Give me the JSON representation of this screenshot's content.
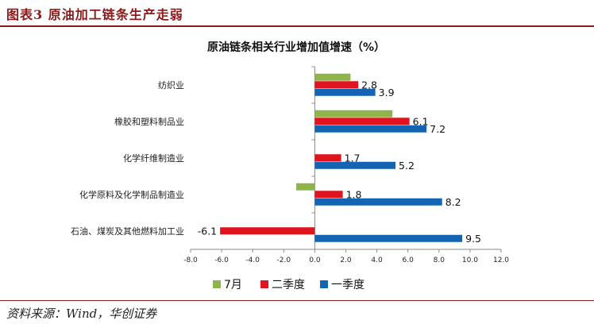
{
  "figure": {
    "title": "图表3   原油加工链条生产走弱",
    "source": "资料来源：Wind，华创证券"
  },
  "chart_data": {
    "type": "bar",
    "orientation": "horizontal",
    "title": "原油链条相关行业增加值增速（%）",
    "categories": [
      "纺织业",
      "橡胶和塑料制品业",
      "化学纤维制造业",
      "化学原料及化学制品制造业",
      "石油、煤炭及其他燃料加工业"
    ],
    "series": [
      {
        "name": "7月",
        "color": "#8db54b",
        "values": [
          2.3,
          5.0,
          null,
          -1.2,
          null
        ],
        "labels": [
          "",
          "",
          "",
          "",
          ""
        ]
      },
      {
        "name": "二季度",
        "color": "#e0141e",
        "values": [
          2.8,
          6.1,
          1.7,
          1.8,
          -6.1
        ],
        "labels": [
          "2.8",
          "6.1",
          "1.7",
          "1.8",
          "-6.1"
        ]
      },
      {
        "name": "一季度",
        "color": "#1464b4",
        "values": [
          3.9,
          7.2,
          5.2,
          8.2,
          9.5
        ],
        "labels": [
          "3.9",
          "7.2",
          "5.2",
          "8.2",
          "9.5"
        ]
      }
    ],
    "xlim": [
      -8.0,
      12.0
    ],
    "xticks": [
      "-8.0",
      "-6.0",
      "-4.0",
      "-2.0",
      "0.0",
      "2.0",
      "4.0",
      "6.0",
      "8.0",
      "10.0",
      "12.0"
    ],
    "xtick_values": [
      -8,
      -6,
      -4,
      -2,
      0,
      2,
      4,
      6,
      8,
      10,
      12
    ],
    "legend_position": "bottom",
    "grid": false
  }
}
